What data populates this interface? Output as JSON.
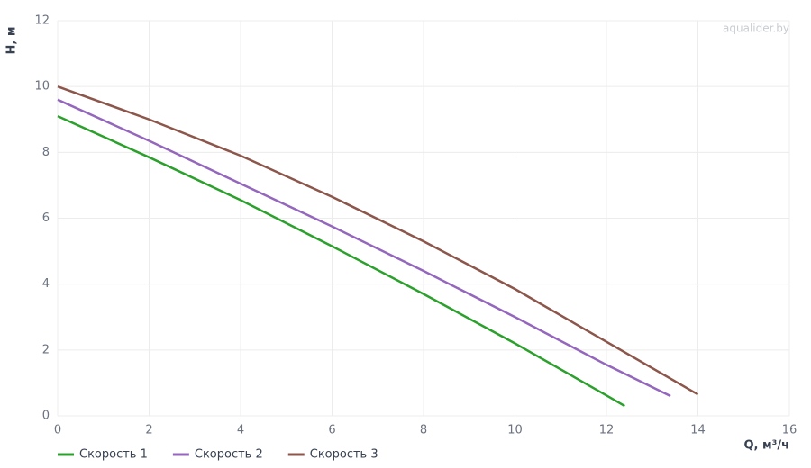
{
  "chart_data": {
    "type": "line",
    "watermark": "aqualider.by",
    "y_label": "H, м",
    "x_label": "Q, м³/ч",
    "xlim": [
      0,
      16
    ],
    "xticks": [
      0,
      2,
      4,
      6,
      8,
      10,
      12,
      14,
      16
    ],
    "ylim": [
      0,
      12
    ],
    "yticks": [
      0,
      2,
      4,
      6,
      8,
      10,
      12
    ],
    "grid": true,
    "series": [
      {
        "name": "Скорость 1",
        "color": "#2ca02c",
        "x": [
          0,
          2,
          4,
          6,
          8,
          10,
          12,
          12.4
        ],
        "values": [
          9.1,
          7.85,
          6.55,
          5.15,
          3.7,
          2.2,
          0.62,
          0.3
        ]
      },
      {
        "name": "Скорость 2",
        "color": "#9467bd",
        "x": [
          0,
          2,
          4,
          6,
          8,
          10,
          12,
          13.4
        ],
        "values": [
          9.6,
          8.35,
          7.05,
          5.75,
          4.4,
          3.0,
          1.55,
          0.6
        ]
      },
      {
        "name": "Скорость 3",
        "color": "#8c564b",
        "x": [
          0,
          2,
          4,
          6,
          8,
          10,
          12,
          14
        ],
        "values": [
          10.0,
          9.0,
          7.9,
          6.65,
          5.3,
          3.85,
          2.25,
          0.65
        ]
      }
    ]
  }
}
